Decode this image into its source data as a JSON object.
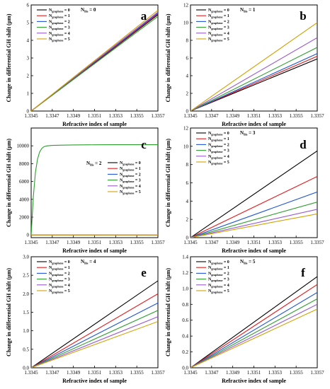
{
  "figure": {
    "legend_label_prefix": "N",
    "legend_label_sub": "graphene",
    "nbis_prefix": "N",
    "nbis_sub": "Bis",
    "colors": [
      "#000000",
      "#e41a1c",
      "#1f56d6",
      "#2e9e2e",
      "#9b59d0",
      "#d4a000"
    ]
  },
  "chart_data": [
    {
      "type": "line",
      "panel_label": "a",
      "nbis_value": "0",
      "xlabel": "Refractive index of sample",
      "ylabel": "Change in differential GH shift (μm)",
      "xlim": [
        1.3345,
        1.3357
      ],
      "ylim": [
        0,
        6
      ],
      "xticks": [
        "1.3345",
        "1.3347",
        "1.3349",
        "1.3351",
        "1.3353",
        "1.3355",
        "1.3357"
      ],
      "yticks": [
        "0",
        "1",
        "2",
        "3",
        "4",
        "5",
        "6"
      ],
      "legend_position": "top-left",
      "legend": [
        "= 0",
        "= 1",
        "= 2",
        "= 3",
        "= 4",
        "= 5"
      ],
      "series": [
        {
          "name": "= 0",
          "x": [
            1.3345,
            1.3357
          ],
          "y": [
            0,
            5.45
          ]
        },
        {
          "name": "= 1",
          "x": [
            1.3345,
            1.3357
          ],
          "y": [
            0,
            5.5
          ]
        },
        {
          "name": "= 2",
          "x": [
            1.3345,
            1.3357
          ],
          "y": [
            0,
            5.55
          ]
        },
        {
          "name": "= 3",
          "x": [
            1.3345,
            1.3357
          ],
          "y": [
            0,
            5.35
          ]
        },
        {
          "name": "= 4",
          "x": [
            1.3345,
            1.3357
          ],
          "y": [
            0,
            5.6
          ]
        },
        {
          "name": "= 5",
          "x": [
            1.3345,
            1.3357
          ],
          "y": [
            0,
            5.7
          ]
        }
      ]
    },
    {
      "type": "line",
      "panel_label": "b",
      "nbis_value": "1",
      "xlabel": "Refractive index of sample",
      "ylabel": "Change in differential GH shift (μm)",
      "xlim": [
        1.3345,
        1.3357
      ],
      "ylim": [
        0,
        12
      ],
      "xticks": [
        "1.3345",
        "1.3347",
        "1.3349",
        "1.3351",
        "1.3353",
        "1.3355",
        "1.3357"
      ],
      "yticks": [
        "0",
        "2",
        "4",
        "6",
        "8",
        "10",
        "12"
      ],
      "legend_position": "top-left",
      "legend": [
        "= 0",
        "= 1",
        "= 2",
        "= 3",
        "= 4",
        "= 5"
      ],
      "series": [
        {
          "name": "= 0",
          "x": [
            1.3345,
            1.3357
          ],
          "y": [
            0,
            5.9
          ]
        },
        {
          "name": "= 1",
          "x": [
            1.3345,
            1.3357
          ],
          "y": [
            0,
            6.2
          ]
        },
        {
          "name": "= 2",
          "x": [
            1.3345,
            1.3357
          ],
          "y": [
            0,
            6.5
          ]
        },
        {
          "name": "= 3",
          "x": [
            1.3345,
            1.3357
          ],
          "y": [
            0,
            7.2
          ]
        },
        {
          "name": "= 4",
          "x": [
            1.3345,
            1.3357
          ],
          "y": [
            0,
            8.3
          ]
        },
        {
          "name": "= 5",
          "x": [
            1.3345,
            1.3357
          ],
          "y": [
            0,
            10
          ]
        }
      ]
    },
    {
      "type": "line",
      "panel_label": "c",
      "nbis_value": "2",
      "xlabel": "Refractive index of sample",
      "ylabel": "Change in differential GH shift (μm)",
      "xlim": [
        1.3345,
        1.3357
      ],
      "ylim": [
        -300,
        12000
      ],
      "xticks": [
        "1.3345",
        "1.3347",
        "1.3349",
        "1.3351",
        "1.3353",
        "1.3355",
        "1.3357"
      ],
      "ytick_values": [
        0,
        2000,
        4000,
        6000,
        8000,
        10000
      ],
      "yticks": [
        "0",
        "2000",
        "4000",
        "6000",
        "8000",
        "10000"
      ],
      "legend_position": "right",
      "legend": [
        "= 0",
        "= 1",
        "= 2",
        "= 3",
        "= 4",
        "= 5"
      ],
      "series": [
        {
          "name": "= 0",
          "x": [
            1.3345,
            1.3357
          ],
          "y": [
            0,
            5
          ]
        },
        {
          "name": "= 1",
          "x": [
            1.3345,
            1.3357
          ],
          "y": [
            0,
            7
          ]
        },
        {
          "name": "= 2",
          "x": [
            1.3345,
            1.3357
          ],
          "y": [
            0,
            9
          ]
        },
        {
          "name": "= 3",
          "x": [
            1.3345,
            1.33452,
            1.33454,
            1.33456,
            1.33458,
            1.3346,
            1.33462,
            1.33465,
            1.3347,
            1.3348,
            1.3349,
            1.3351,
            1.3353,
            1.3355,
            1.3357
          ],
          "y": [
            0,
            4200,
            7000,
            8500,
            9300,
            9700,
            9900,
            10000,
            10050,
            10080,
            10100,
            10120,
            10130,
            10130,
            10130
          ]
        },
        {
          "name": "= 4",
          "x": [
            1.3345,
            1.3357
          ],
          "y": [
            0,
            10
          ]
        },
        {
          "name": "= 5",
          "x": [
            1.3345,
            1.3357
          ],
          "y": [
            0,
            12
          ]
        }
      ]
    },
    {
      "type": "line",
      "panel_label": "d",
      "nbis_value": "3",
      "xlabel": "Refractive index of sample",
      "ylabel": "Change in differential GH shift (μm)",
      "xlim": [
        1.3345,
        1.3357
      ],
      "ylim": [
        0,
        12
      ],
      "xticks": [
        "1.3345",
        "1.3347",
        "1.3349",
        "1.3351",
        "1.3353",
        "1.3355",
        "1.3357"
      ],
      "yticks": [
        "0",
        "2",
        "4",
        "6",
        "8",
        "10",
        "12"
      ],
      "legend_position": "top-left",
      "legend": [
        "= 0",
        "= 1",
        "= 2",
        "= 3",
        "= 4",
        "= 5"
      ],
      "series": [
        {
          "name": "= 0",
          "x": [
            1.3345,
            1.3357
          ],
          "y": [
            0,
            9.5
          ]
        },
        {
          "name": "= 1",
          "x": [
            1.3345,
            1.3357
          ],
          "y": [
            0,
            6.7
          ]
        },
        {
          "name": "= 2",
          "x": [
            1.3345,
            1.3357
          ],
          "y": [
            0,
            5
          ]
        },
        {
          "name": "= 3",
          "x": [
            1.3345,
            1.3357
          ],
          "y": [
            0,
            3.9
          ]
        },
        {
          "name": "= 4",
          "x": [
            1.3345,
            1.3357
          ],
          "y": [
            0,
            3.1
          ]
        },
        {
          "name": "= 5",
          "x": [
            1.3345,
            1.3357
          ],
          "y": [
            0,
            2.6
          ]
        }
      ]
    },
    {
      "type": "line",
      "panel_label": "e",
      "nbis_value": "4",
      "xlabel": "Refractive index of sample",
      "ylabel": "Change in differential GH shift (μm)",
      "xlim": [
        1.3345,
        1.3357
      ],
      "ylim": [
        0,
        3.0
      ],
      "xticks": [
        "1.3345",
        "1.3347",
        "1.3349",
        "1.3351",
        "1.3353",
        "1.3355",
        "1.3357"
      ],
      "yticks": [
        "0.0",
        "0.5",
        "1.0",
        "1.5",
        "2.0",
        "2.5",
        "3.0"
      ],
      "legend_position": "top-left",
      "legend": [
        "= 0",
        "= 1",
        "= 2",
        "= 3",
        "= 4",
        "= 5"
      ],
      "series": [
        {
          "name": "= 0",
          "x": [
            1.3345,
            1.3357
          ],
          "y": [
            0,
            2.35
          ]
        },
        {
          "name": "= 1",
          "x": [
            1.3345,
            1.3357
          ],
          "y": [
            0,
            2.0
          ]
        },
        {
          "name": "= 2",
          "x": [
            1.3345,
            1.3357
          ],
          "y": [
            0,
            1.75
          ]
        },
        {
          "name": "= 3",
          "x": [
            1.3345,
            1.3357
          ],
          "y": [
            0,
            1.55
          ]
        },
        {
          "name": "= 4",
          "x": [
            1.3345,
            1.3357
          ],
          "y": [
            0,
            1.38
          ]
        },
        {
          "name": "= 5",
          "x": [
            1.3345,
            1.3357
          ],
          "y": [
            0,
            1.25
          ]
        }
      ]
    },
    {
      "type": "line",
      "panel_label": "f",
      "nbis_value": "5",
      "xlabel": "Refractive index of sample",
      "ylabel": "Change in differential GH shift (μm)",
      "xlim": [
        1.3345,
        1.3357
      ],
      "ylim": [
        0,
        1.4
      ],
      "xticks": [
        "1.3345",
        "1.3347",
        "1.3349",
        "1.3351",
        "1.3353",
        "1.3355",
        "1.3357"
      ],
      "yticks": [
        "0.0",
        "0.2",
        "0.4",
        "0.6",
        "0.8",
        "1.0",
        "1.2",
        "1.4"
      ],
      "legend_position": "top-left",
      "legend": [
        "= 0",
        "= 1",
        "= 2",
        "= 3",
        "= 4",
        "= 5"
      ],
      "series": [
        {
          "name": "= 0",
          "x": [
            1.3345,
            1.3357
          ],
          "y": [
            0,
            1.15
          ]
        },
        {
          "name": "= 1",
          "x": [
            1.3345,
            1.3357
          ],
          "y": [
            0,
            1.05
          ]
        },
        {
          "name": "= 2",
          "x": [
            1.3345,
            1.3357
          ],
          "y": [
            0,
            0.95
          ]
        },
        {
          "name": "= 3",
          "x": [
            1.3345,
            1.3357
          ],
          "y": [
            0,
            0.87
          ]
        },
        {
          "name": "= 4",
          "x": [
            1.3345,
            1.3357
          ],
          "y": [
            0,
            0.8
          ]
        },
        {
          "name": "= 5",
          "x": [
            1.3345,
            1.3357
          ],
          "y": [
            0,
            0.74
          ]
        }
      ]
    }
  ]
}
